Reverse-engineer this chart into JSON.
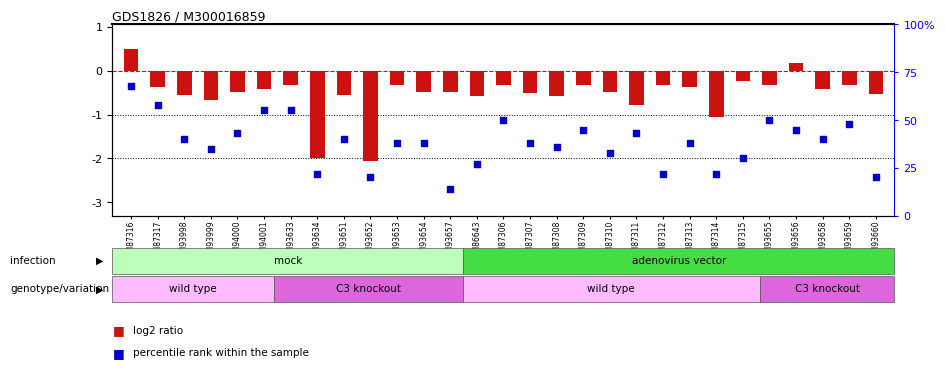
{
  "title": "GDS1826 / M300016859",
  "samples": [
    "GSM87316",
    "GSM87317",
    "GSM93998",
    "GSM93999",
    "GSM94000",
    "GSM94001",
    "GSM93633",
    "GSM93634",
    "GSM93651",
    "GSM93652",
    "GSM93653",
    "GSM93654",
    "GSM93657",
    "GSM86643",
    "GSM87306",
    "GSM87307",
    "GSM87308",
    "GSM87309",
    "GSM87310",
    "GSM87311",
    "GSM87312",
    "GSM87313",
    "GSM87314",
    "GSM87315",
    "GSM93655",
    "GSM93656",
    "GSM93658",
    "GSM93659",
    "GSM93660"
  ],
  "log2_ratios": [
    0.5,
    -0.38,
    -0.55,
    -0.68,
    -0.48,
    -0.42,
    -0.32,
    -2.0,
    -0.55,
    -2.05,
    -0.33,
    -0.48,
    -0.48,
    -0.58,
    -0.33,
    -0.5,
    -0.58,
    -0.33,
    -0.48,
    -0.78,
    -0.32,
    -0.38,
    -1.05,
    -0.23,
    -0.33,
    0.17,
    -0.42,
    -0.33,
    -0.53
  ],
  "percentile_ranks_pct": [
    68,
    58,
    40,
    35,
    43,
    55,
    55,
    22,
    40,
    20,
    38,
    38,
    14,
    27,
    50,
    38,
    36,
    45,
    33,
    43,
    22,
    38,
    22,
    30,
    50,
    45,
    40,
    48,
    20
  ],
  "infection_groups": [
    {
      "label": "mock",
      "start": 0,
      "end": 12,
      "color": "#bbffbb"
    },
    {
      "label": "adenovirus vector",
      "start": 13,
      "end": 28,
      "color": "#44dd44"
    }
  ],
  "genotype_groups": [
    {
      "label": "wild type",
      "start": 0,
      "end": 5,
      "color": "#ffbbff"
    },
    {
      "label": "C3 knockout",
      "start": 6,
      "end": 12,
      "color": "#dd66dd"
    },
    {
      "label": "wild type",
      "start": 13,
      "end": 23,
      "color": "#ffbbff"
    },
    {
      "label": "C3 knockout",
      "start": 24,
      "end": 28,
      "color": "#dd66dd"
    }
  ],
  "bar_color": "#cc1111",
  "scatter_color": "#0000cc",
  "dashed_line_color": "#cc1111",
  "ylim_left": [
    -3.3,
    1.05
  ],
  "ylim_right": [
    0,
    100
  ],
  "yticks_left": [
    1,
    0,
    -1,
    -2,
    -3
  ],
  "yticks_right": [
    0,
    25,
    50,
    75,
    100
  ]
}
